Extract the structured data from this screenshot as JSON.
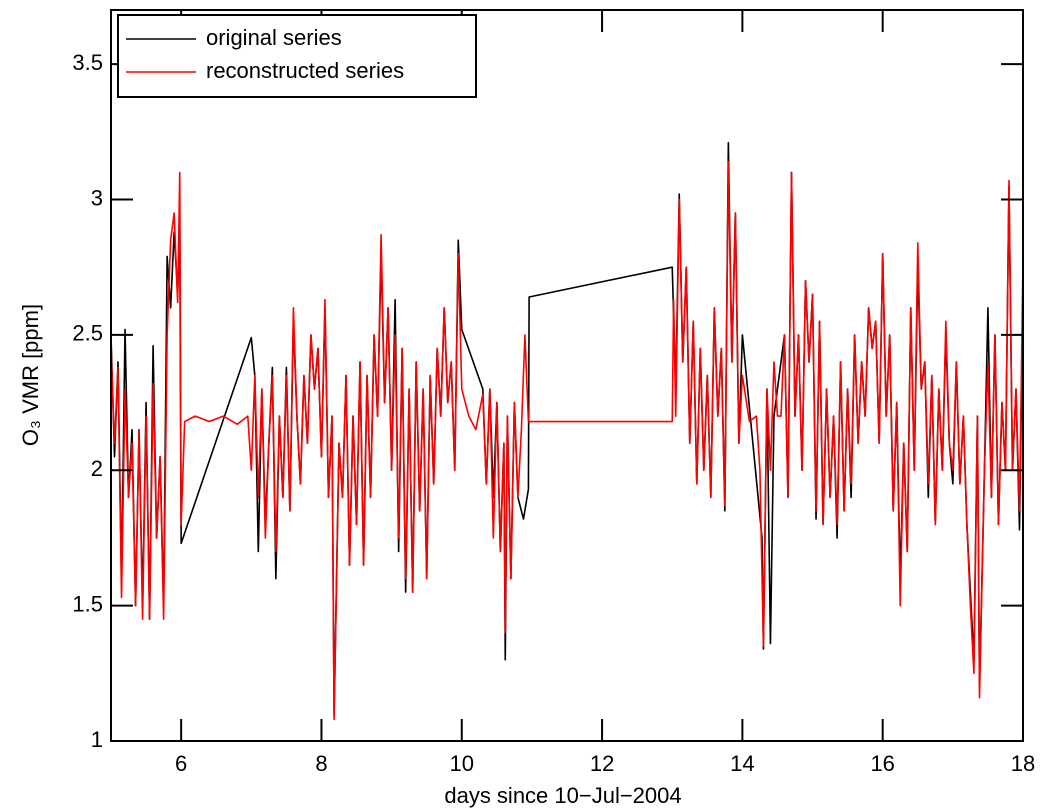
{
  "chart_data": {
    "type": "line",
    "xlabel": "days since 10−Jul−2004",
    "ylabel": "O₃ VMR [ppm]",
    "xlim": [
      5,
      18
    ],
    "xticks": [
      6,
      8,
      10,
      12,
      14,
      16,
      18
    ],
    "ylim": [
      1,
      3.7
    ],
    "yticks": [
      1,
      1.5,
      2,
      2.5,
      3,
      3.5
    ],
    "legend": "upper left",
    "series": [
      {
        "name": "original series",
        "color": "#000000",
        "x": [
          5.0,
          5.05,
          5.1,
          5.15,
          5.2,
          5.25,
          5.3,
          5.35,
          5.4,
          5.45,
          5.5,
          5.55,
          5.6,
          5.65,
          5.7,
          5.75,
          5.8,
          5.85,
          5.9,
          5.95,
          5.98,
          6.0,
          7.0,
          7.05,
          7.1,
          7.15,
          7.2,
          7.25,
          7.3,
          7.35,
          7.4,
          7.45,
          7.5,
          7.55,
          7.6,
          7.65,
          7.7,
          7.75,
          7.8,
          7.85,
          7.9,
          7.95,
          8.0,
          8.05,
          8.1,
          8.15,
          8.18,
          8.25,
          8.3,
          8.35,
          8.4,
          8.45,
          8.5,
          8.55,
          8.6,
          8.65,
          8.7,
          8.75,
          8.8,
          8.85,
          8.9,
          8.95,
          9.0,
          9.05,
          9.1,
          9.15,
          9.2,
          9.25,
          9.3,
          9.35,
          9.4,
          9.45,
          9.5,
          9.55,
          9.6,
          9.65,
          9.7,
          9.75,
          9.8,
          9.85,
          9.9,
          9.95,
          10.0,
          10.3,
          10.35,
          10.4,
          10.45,
          10.5,
          10.55,
          10.6,
          10.62,
          10.65,
          10.7,
          10.75,
          10.8,
          10.88,
          10.95,
          10.96,
          13.0,
          13.05,
          13.1,
          13.15,
          13.2,
          13.25,
          13.3,
          13.35,
          13.4,
          13.45,
          13.5,
          13.55,
          13.6,
          13.65,
          13.7,
          13.75,
          13.8,
          13.85,
          13.9,
          13.95,
          14.0,
          14.28,
          14.3,
          14.35,
          14.4,
          14.45,
          14.6,
          14.65,
          14.7,
          14.75,
          14.8,
          14.85,
          14.9,
          14.95,
          15.0,
          15.05,
          15.1,
          15.15,
          15.2,
          15.25,
          15.3,
          15.35,
          15.4,
          15.45,
          15.5,
          15.55,
          15.6,
          15.65,
          15.7,
          15.75,
          15.8,
          15.85,
          15.9,
          15.95,
          16.0,
          16.05,
          16.1,
          16.15,
          16.2,
          16.25,
          16.3,
          16.35,
          16.4,
          16.45,
          16.5,
          16.55,
          16.6,
          16.65,
          16.7,
          16.75,
          16.8,
          16.85,
          16.9,
          16.95,
          17.0,
          17.05,
          17.1,
          17.15,
          17.2,
          17.25,
          17.3,
          17.35,
          17.38,
          17.45,
          17.5,
          17.55,
          17.6,
          17.65,
          17.7,
          17.75,
          17.8,
          17.85,
          17.9,
          17.95,
          18.0
        ],
        "values": [
          2.5,
          2.05,
          2.4,
          1.6,
          2.52,
          1.9,
          2.15,
          1.5,
          2.15,
          1.5,
          2.25,
          1.45,
          2.46,
          1.75,
          2.05,
          1.5,
          2.79,
          2.6,
          2.88,
          2.65,
          2.9,
          1.73,
          2.49,
          2.35,
          1.7,
          2.3,
          1.8,
          2.1,
          2.38,
          1.6,
          2.2,
          1.9,
          2.38,
          1.85,
          2.55,
          2.2,
          1.95,
          2.35,
          2.1,
          2.5,
          2.3,
          2.45,
          2.05,
          2.6,
          1.9,
          2.2,
          1.1,
          2.1,
          1.9,
          2.35,
          1.65,
          2.2,
          1.8,
          2.4,
          1.65,
          2.35,
          1.9,
          2.5,
          2.2,
          2.8,
          2.25,
          2.6,
          2.0,
          2.63,
          1.7,
          2.45,
          1.55,
          2.3,
          1.55,
          2.4,
          1.85,
          2.3,
          1.6,
          2.35,
          1.95,
          2.45,
          2.2,
          2.6,
          2.25,
          2.4,
          2.0,
          2.85,
          2.52,
          2.3,
          1.95,
          2.3,
          1.9,
          2.25,
          1.7,
          2.1,
          1.3,
          2.2,
          1.6,
          2.25,
          1.9,
          1.82,
          1.93,
          2.64,
          2.75,
          2.3,
          3.02,
          2.4,
          2.75,
          2.1,
          2.55,
          1.95,
          2.45,
          2.0,
          2.35,
          1.9,
          2.6,
          2.2,
          2.45,
          1.85,
          3.21,
          2.4,
          2.95,
          2.1,
          2.5,
          1.75,
          1.34,
          2.3,
          1.36,
          2.2,
          2.5,
          1.9,
          3.1,
          2.2,
          2.5,
          2.0,
          2.7,
          2.4,
          2.65,
          1.82,
          2.55,
          1.8,
          2.3,
          1.9,
          2.2,
          1.75,
          2.4,
          1.85,
          2.3,
          1.9,
          2.5,
          2.1,
          2.4,
          2.2,
          2.6,
          2.45,
          2.55,
          2.1,
          2.8,
          2.2,
          2.5,
          1.85,
          2.25,
          1.6,
          2.1,
          1.7,
          2.6,
          2.0,
          2.75,
          2.3,
          2.4,
          1.9,
          2.35,
          1.8,
          2.3,
          2.0,
          2.5,
          2.1,
          1.95,
          2.4,
          1.95,
          2.2,
          1.8,
          1.55,
          1.3,
          2.2,
          1.2,
          2.0,
          2.6,
          1.9,
          2.5,
          1.8,
          2.25,
          2.0,
          3.05,
          2.0,
          2.3,
          1.78,
          2.65
        ]
      },
      {
        "name": "reconstructed series",
        "color": "#ff0000",
        "x": [
          5.0,
          5.05,
          5.1,
          5.15,
          5.2,
          5.25,
          5.3,
          5.35,
          5.4,
          5.45,
          5.5,
          5.55,
          5.6,
          5.65,
          5.7,
          5.75,
          5.8,
          5.85,
          5.9,
          5.95,
          5.98,
          6.0,
          6.05,
          6.2,
          6.4,
          6.6,
          6.8,
          6.95,
          7.0,
          7.05,
          7.1,
          7.15,
          7.2,
          7.25,
          7.3,
          7.35,
          7.4,
          7.45,
          7.5,
          7.55,
          7.6,
          7.65,
          7.7,
          7.75,
          7.8,
          7.85,
          7.9,
          7.95,
          8.0,
          8.05,
          8.1,
          8.15,
          8.18,
          8.25,
          8.3,
          8.35,
          8.4,
          8.45,
          8.5,
          8.55,
          8.6,
          8.65,
          8.7,
          8.75,
          8.8,
          8.85,
          8.9,
          8.95,
          9.0,
          9.05,
          9.1,
          9.15,
          9.2,
          9.25,
          9.3,
          9.35,
          9.4,
          9.45,
          9.5,
          9.55,
          9.6,
          9.65,
          9.7,
          9.75,
          9.8,
          9.85,
          9.9,
          9.95,
          10.0,
          10.1,
          10.2,
          10.3,
          10.35,
          10.4,
          10.45,
          10.5,
          10.55,
          10.6,
          10.62,
          10.65,
          10.7,
          10.75,
          10.8,
          10.85,
          10.9,
          10.95,
          11.2,
          11.6,
          12.0,
          12.5,
          13.0,
          13.02,
          13.05,
          13.1,
          13.15,
          13.2,
          13.25,
          13.3,
          13.35,
          13.4,
          13.45,
          13.5,
          13.55,
          13.6,
          13.65,
          13.7,
          13.75,
          13.8,
          13.85,
          13.9,
          13.95,
          14.0,
          14.1,
          14.2,
          14.25,
          14.3,
          14.35,
          14.4,
          14.45,
          14.5,
          14.55,
          14.6,
          14.65,
          14.7,
          14.75,
          14.8,
          14.85,
          14.9,
          14.95,
          15.0,
          15.05,
          15.1,
          15.15,
          15.2,
          15.25,
          15.3,
          15.35,
          15.4,
          15.45,
          15.5,
          15.55,
          15.6,
          15.65,
          15.7,
          15.75,
          15.8,
          15.85,
          15.9,
          15.95,
          16.0,
          16.05,
          16.1,
          16.15,
          16.2,
          16.25,
          16.3,
          16.35,
          16.4,
          16.45,
          16.5,
          16.55,
          16.6,
          16.65,
          16.7,
          16.75,
          16.8,
          16.85,
          16.9,
          16.95,
          17.0,
          17.05,
          17.1,
          17.15,
          17.2,
          17.25,
          17.3,
          17.35,
          17.38,
          17.45,
          17.5,
          17.55,
          17.6,
          17.65,
          17.7,
          17.75,
          17.8,
          17.85,
          17.9,
          17.95,
          18.0
        ],
        "values": [
          2.45,
          2.1,
          2.38,
          1.53,
          2.3,
          1.9,
          2.1,
          1.5,
          2.15,
          1.45,
          2.2,
          1.45,
          2.32,
          1.75,
          2.05,
          1.45,
          2.5,
          2.85,
          2.95,
          2.62,
          3.1,
          1.8,
          2.18,
          2.2,
          2.18,
          2.2,
          2.17,
          2.2,
          2.0,
          2.35,
          1.9,
          2.3,
          1.75,
          2.1,
          2.35,
          1.7,
          2.2,
          1.9,
          2.35,
          1.85,
          2.6,
          2.2,
          1.95,
          2.35,
          2.1,
          2.5,
          2.3,
          2.45,
          2.05,
          2.63,
          1.9,
          2.2,
          1.08,
          2.1,
          1.9,
          2.35,
          1.65,
          2.2,
          1.8,
          2.4,
          1.65,
          2.35,
          1.9,
          2.5,
          2.2,
          2.87,
          2.25,
          2.6,
          2.0,
          2.5,
          1.75,
          2.45,
          1.6,
          2.3,
          1.55,
          2.4,
          1.85,
          2.3,
          1.6,
          2.35,
          1.95,
          2.45,
          2.2,
          2.6,
          2.25,
          2.4,
          2.0,
          2.8,
          2.3,
          2.2,
          2.15,
          2.28,
          1.95,
          2.3,
          1.75,
          2.25,
          1.7,
          2.1,
          1.4,
          2.2,
          1.6,
          2.25,
          1.9,
          2.15,
          2.5,
          2.18,
          2.18,
          2.18,
          2.18,
          2.18,
          2.18,
          2.63,
          2.2,
          3.0,
          2.4,
          2.75,
          2.1,
          2.55,
          1.95,
          2.45,
          2.0,
          2.35,
          1.9,
          2.6,
          2.2,
          2.45,
          1.87,
          3.14,
          2.4,
          2.95,
          2.1,
          2.35,
          2.18,
          2.2,
          2.0,
          1.35,
          2.3,
          2.0,
          2.4,
          2.2,
          2.2,
          2.5,
          1.9,
          3.1,
          2.2,
          2.5,
          2.0,
          2.7,
          2.4,
          2.65,
          1.85,
          2.55,
          1.8,
          2.3,
          1.9,
          2.2,
          1.8,
          2.4,
          1.85,
          2.3,
          1.95,
          2.5,
          2.1,
          2.4,
          2.2,
          2.6,
          2.45,
          2.55,
          2.1,
          2.8,
          2.2,
          2.5,
          1.85,
          2.25,
          1.5,
          2.1,
          1.7,
          2.6,
          2.0,
          2.84,
          2.3,
          2.4,
          1.95,
          2.35,
          1.8,
          2.3,
          2.0,
          2.55,
          2.1,
          2.0,
          2.4,
          1.95,
          2.2,
          1.8,
          1.5,
          1.25,
          2.2,
          1.16,
          2.0,
          2.4,
          1.9,
          2.5,
          1.8,
          2.25,
          2.0,
          3.07,
          2.0,
          2.3,
          1.85,
          2.78
        ]
      }
    ]
  }
}
